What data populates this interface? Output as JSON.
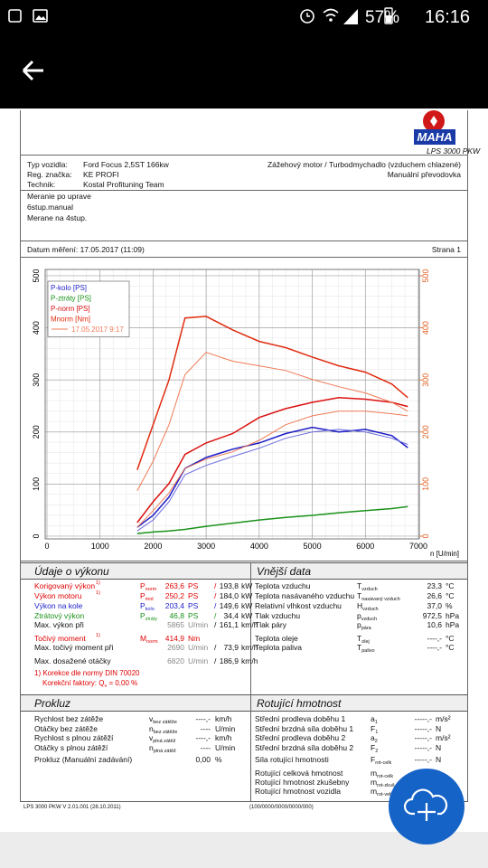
{
  "status_bar": {
    "battery": "57%",
    "time": "16:16"
  },
  "header": {
    "logo_text": "MAHA",
    "model": "LPS 3000 PKW"
  },
  "vehicle": {
    "rows": [
      [
        "Typ vozidla:",
        "Ford Focus 2,5ST 166kw"
      ],
      [
        "Reg. značka:",
        "KE PROFI"
      ],
      [
        "Technik:",
        "Kostal Profituning Team"
      ]
    ],
    "engine": "Zážehový motor / Turbodmychadlo (vzduchem chlazené)",
    "gearbox": "Manuální převodovka"
  },
  "notes": [
    "Meranie po uprave",
    "6stup.manual",
    "Merane na 4stup."
  ],
  "measurement": {
    "date": "Datum měření: 17.05.2017 (11:09)",
    "page": "Strana 1"
  },
  "chart_data": {
    "type": "line",
    "x_label": "n [U/min]",
    "xlim": [
      0,
      7000
    ],
    "xticks": [
      0,
      1000,
      2000,
      3000,
      4000,
      5000,
      6000,
      7000
    ],
    "ylim": [
      0,
      500
    ],
    "yticks": [
      0,
      100,
      200,
      300,
      400,
      500
    ],
    "y2lim": [
      0,
      500
    ],
    "y2ticks": [
      0,
      100,
      200,
      300,
      400,
      500
    ],
    "y2_color": "#e06020",
    "grid": true,
    "legend": "upper left",
    "x": [
      1700,
      2000,
      2300,
      2600,
      3000,
      3500,
      4000,
      4500,
      5000,
      5500,
      6000,
      6500,
      6800
    ],
    "series": [
      {
        "name": "P-kolo [PS]",
        "color": "#1c1cc8",
        "values": [
          17,
          40,
          75,
          130,
          151,
          167,
          179,
          197,
          209,
          200,
          205,
          193,
          170
        ]
      },
      {
        "name": "P-ztráty [PS]",
        "color": "#1a921a",
        "values": [
          5,
          8,
          10,
          13,
          19,
          25,
          31,
          36,
          40,
          45,
          49,
          53,
          57
        ]
      },
      {
        "name": "P-norm [PS]",
        "color": "#dc1010",
        "values": [
          26,
          66,
          101,
          157,
          179,
          197,
          228,
          245,
          257,
          266,
          263,
          257,
          249
        ]
      },
      {
        "name": "Mnorm [Nm]",
        "color": "#e02c10",
        "axis": "y2",
        "values": [
          127,
          214,
          300,
          419,
          422,
          396,
          374,
          362,
          344,
          327,
          315,
          292,
          266
        ]
      },
      {
        "name": "17.05.2017 9:17",
        "color": "#f07a55",
        "axis": "y2",
        "values": [
          87,
          144,
          214,
          310,
          353,
          336,
          327,
          318,
          301,
          287,
          275,
          257,
          240
        ]
      },
      {
        "color": "#f07a55",
        "values": [
          17,
          49,
          83,
          130,
          148,
          162,
          184,
          214,
          231,
          240,
          240,
          235,
          231
        ]
      },
      {
        "color": "#6a6ae0",
        "values": [
          10,
          31,
          66,
          118,
          136,
          153,
          169,
          188,
          200,
          205,
          200,
          188,
          176
        ]
      }
    ]
  },
  "performance": {
    "title": "Údaje o výkonu",
    "rows": [
      {
        "label": "Korigovaný výkon",
        "note": "1)",
        "sym": "P",
        "sub": "norm",
        "v1": "263,6",
        "u1": "PS",
        "sep": "/",
        "v2": "193,8",
        "u2": "kW",
        "color": "#e00000"
      },
      {
        "label": "Výkon motoru",
        "note": "1)",
        "sym": "P",
        "sub": "mot",
        "v1": "250,2",
        "u1": "PS",
        "sep": "/",
        "v2": "184,0",
        "u2": "kW",
        "color": "#e00000"
      },
      {
        "label": "Výkon na kole",
        "sym": "P",
        "sub": "kolo",
        "v1": "203,4",
        "u1": "PS",
        "sep": "/",
        "v2": "149,6",
        "u2": "kW",
        "color": "#1c1cc8"
      },
      {
        "label": "Ztrátový výkon",
        "sym": "P",
        "sub": "ztráty",
        "v1": "46,8",
        "u1": "PS",
        "sep": "/",
        "v2": "34,4",
        "u2": "kW",
        "color": "#1a921a"
      },
      {
        "label": "Max. výkon při",
        "v1": "5865",
        "u1": "U/min",
        "sep": "/",
        "v2": "161,1",
        "u2": "km/h",
        "color": "#111"
      },
      {
        "label": "Točivý moment",
        "note": "1)",
        "sym": "M",
        "sub": "norm",
        "v1": "414,9",
        "u1": "Nm",
        "color": "#e00000"
      },
      {
        "label": "Max. točivý moment při",
        "v1": "2690",
        "u1": "U/min",
        "sep": "/",
        "v2": "73,9",
        "u2": "km/h",
        "color": "#111"
      },
      {
        "label": "Max. dosažené otáčky",
        "v1": "6820",
        "u1": "U/min",
        "sep": "/",
        "v2": "186,9",
        "u2": "km/h",
        "color": "#111"
      }
    ],
    "footnote": "1) Korekce dle normy DIN 70020",
    "factor": "Korekční faktory: Q",
    "factor_sub": "v",
    "factor_value": "=    0,00 %"
  },
  "external": {
    "title": "Vnější data",
    "rows": [
      {
        "label": "Teplota vzduchu",
        "sym": "T",
        "sub": "vzduch",
        "value": "23,3",
        "unit": "°C"
      },
      {
        "label": "Teplota nasávaného vzduchu",
        "sym": "T",
        "sub": "nasávaný vzduch",
        "value": "26,6",
        "unit": "°C"
      },
      {
        "label": "Relativní vlhkost vzduchu",
        "sym": "H",
        "sub": "vzduch",
        "value": "37,0",
        "unit": "%"
      },
      {
        "label": "Tlak vzduchu",
        "sym": "p",
        "sub": "vzduch",
        "value": "972,5",
        "unit": "hPa"
      },
      {
        "label": "Tlak páry",
        "sym": "p",
        "sub": "pára",
        "value": "10,6",
        "unit": "hPa"
      }
    ],
    "rows2": [
      {
        "label": "Teplota oleje",
        "sym": "T",
        "sub": "olej",
        "value": "----,-",
        "unit": "°C"
      },
      {
        "label": "Teplota paliva",
        "sym": "T",
        "sub": "palivo",
        "value": "----,-",
        "unit": "°C"
      }
    ]
  },
  "slip": {
    "title": "Prokluz",
    "rows": [
      {
        "label": "Rychlost bez zátěže",
        "sym": "v",
        "sub": "bez zátěže",
        "value": "----,-",
        "unit": "km/h"
      },
      {
        "label": "Otáčky bez zátěže",
        "sym": "n",
        "sub": "bez zátěže",
        "value": "----",
        "unit": "U/min"
      },
      {
        "label": "Rychlost s plnou zátěží",
        "sym": "v",
        "sub": "plná zátěž",
        "value": "----,-",
        "unit": "km/h"
      },
      {
        "label": "Otáčky s plnou zátěží",
        "sym": "n",
        "sub": "plná zátěž",
        "value": "----",
        "unit": "U/min"
      }
    ],
    "total": {
      "label": "Prokluz (Manuální zadávání)",
      "value": "0,00",
      "unit": "%"
    }
  },
  "rotating": {
    "title": "Rotující hmotnost",
    "rows": [
      {
        "label": "Střední prodleva doběhu 1",
        "sym": "a",
        "sub": "1",
        "value": "-----,-",
        "unit": "m/s²"
      },
      {
        "label": "Střední brzdná síla doběhu 1",
        "sym": "F",
        "sub": "1",
        "value": "-----,-",
        "unit": "N"
      },
      {
        "label": "Střední prodleva doběhu 2",
        "sym": "a",
        "sub": "2",
        "value": "-----,-",
        "unit": "m/s²"
      },
      {
        "label": "Střední brzdná síla doběhu 2",
        "sym": "F",
        "sub": "2",
        "value": "-----,-",
        "unit": "N"
      }
    ],
    "force": {
      "label": "Síla rotující hmotnosti",
      "sym": "F",
      "sub": "rot-celk",
      "value": "-----,-",
      "unit": "N"
    },
    "mass_rows": [
      {
        "label": "Rotující celková hmotnost",
        "sym": "m",
        "sub": "rot-celk"
      },
      {
        "label": "Rotující hmotnost zkušebny",
        "sym": "m",
        "sub": "rot-zkuš"
      },
      {
        "label": "Rotující hmotnost vozidla",
        "sym": "m",
        "sub": "rot-veh"
      }
    ]
  },
  "footer": {
    "version": "LPS 3000 PKW V 2.01.001 (28.10.2011)",
    "code": "(100/0000/0000/0000/000)"
  }
}
